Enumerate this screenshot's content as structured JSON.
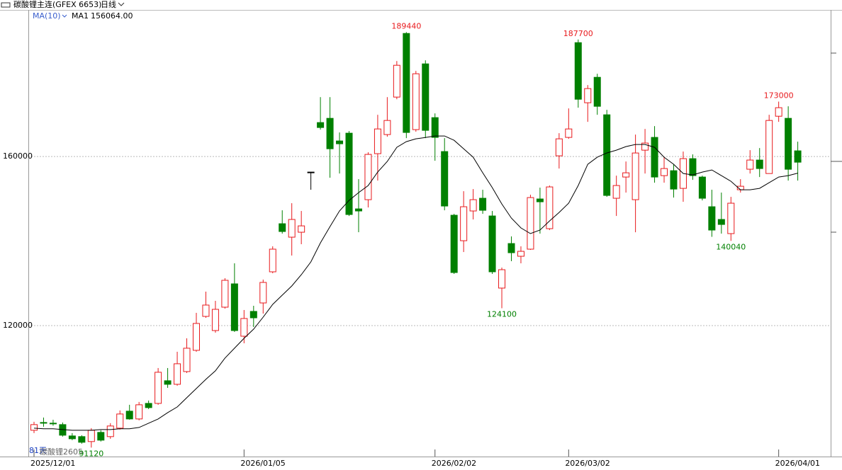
{
  "header": {
    "title": "碳酸锂主连(GFEX 6653)",
    "period": "日线"
  },
  "chart_data": {
    "type": "candlestick",
    "categories": [
      "2025/12/01",
      null,
      null,
      null,
      null,
      null,
      null,
      null,
      null,
      null,
      null,
      null,
      null,
      null,
      null,
      null,
      null,
      null,
      null,
      null,
      null,
      null,
      "2026/01/05",
      null,
      null,
      null,
      null,
      null,
      null,
      null,
      null,
      null,
      null,
      null,
      null,
      null,
      null,
      null,
      null,
      null,
      null,
      null,
      "2026/02/02",
      null,
      null,
      null,
      null,
      null,
      null,
      null,
      null,
      null,
      null,
      null,
      null,
      null,
      "2026/03/02",
      null,
      null,
      null,
      null,
      null,
      null,
      null,
      null,
      null,
      null,
      null,
      null,
      null,
      null,
      null,
      null,
      null,
      null,
      null,
      null,
      null,
      "2026/04/01",
      null,
      null
    ],
    "open": [
      95220,
      97060,
      96900,
      96560,
      93880,
      93720,
      92550,
      94720,
      93720,
      95720,
      99740,
      97900,
      101580,
      101580,
      106940,
      106100,
      109110,
      114140,
      122170,
      118820,
      124350,
      129870,
      117480,
      123350,
      125350,
      132720,
      144100,
      140920,
      142090,
      156320,
      168040,
      169040,
      163690,
      165530,
      147610,
      149790,
      160680,
      165200,
      174070,
      189130,
      166370,
      181930,
      169210,
      161180,
      146110,
      140080,
      147120,
      150130,
      145940,
      128870,
      139410,
      136400,
      138080,
      149960,
      142930,
      160170,
      164530,
      186950,
      172730,
      178750,
      169880,
      150130,
      155150,
      149790,
      161510,
      164530,
      155480,
      156650,
      152470,
      159500,
      155150,
      148120,
      145110,
      141760,
      152140,
      157000,
      159170,
      155980,
      169540,
      169040,
      161350
    ],
    "high": [
      97230,
      98230,
      97700,
      97060,
      94550,
      94050,
      95720,
      95220,
      96900,
      99910,
      101250,
      101920,
      102250,
      109950,
      109950,
      113800,
      116980,
      123010,
      128030,
      125850,
      131210,
      134730,
      123680,
      124680,
      130880,
      138750,
      147280,
      148960,
      147120,
      156320,
      174060,
      174060,
      165700,
      166030,
      154650,
      161010,
      169880,
      174060,
      182600,
      189440,
      180260,
      182770,
      170210,
      164360,
      146440,
      151800,
      152300,
      152140,
      147120,
      133720,
      141090,
      138750,
      150960,
      152640,
      153140,
      165530,
      171390,
      187700,
      176920,
      179590,
      171050,
      155480,
      158830,
      165200,
      166530,
      167200,
      159830,
      158160,
      161180,
      160510,
      155480,
      152140,
      151470,
      150460,
      154650,
      161510,
      162010,
      169880,
      173000,
      171890,
      163520
    ],
    "low": [
      94550,
      96060,
      96300,
      93720,
      92880,
      92040,
      91120,
      92550,
      93210,
      95390,
      97730,
      97570,
      100240,
      101250,
      105260,
      105770,
      108780,
      113800,
      121830,
      118320,
      124010,
      118490,
      115810,
      119660,
      122840,
      132380,
      141760,
      136570,
      139250,
      152140,
      166370,
      154980,
      155980,
      145940,
      142090,
      147950,
      154310,
      164690,
      173560,
      164360,
      165870,
      164360,
      159000,
      147280,
      132220,
      137400,
      145110,
      146440,
      132220,
      124100,
      135230,
      134730,
      137910,
      141760,
      142600,
      157160,
      164190,
      171560,
      168210,
      169880,
      150460,
      145940,
      151470,
      142090,
      155980,
      153810,
      153810,
      150290,
      149290,
      154480,
      149620,
      141000,
      141760,
      140040,
      151470,
      155980,
      155150,
      155980,
      168210,
      154310,
      154310
    ],
    "close": [
      96560,
      96890,
      96800,
      94050,
      93210,
      92380,
      95220,
      92880,
      96230,
      99070,
      97900,
      101250,
      100580,
      108950,
      106100,
      110960,
      114640,
      120500,
      124850,
      123840,
      130710,
      118820,
      121670,
      121830,
      130210,
      138080,
      142260,
      145110,
      143590,
      156320,
      166870,
      161840,
      163020,
      146280,
      147120,
      160510,
      166530,
      168540,
      181600,
      165700,
      179590,
      166200,
      164530,
      148290,
      132550,
      148120,
      149790,
      147280,
      132720,
      133220,
      137240,
      137570,
      150290,
      149290,
      152810,
      164190,
      166530,
      173560,
      176080,
      171890,
      150800,
      153140,
      156150,
      160840,
      163190,
      155150,
      157160,
      152300,
      159500,
      155480,
      150130,
      142600,
      143930,
      148960,
      152970,
      159170,
      157160,
      168540,
      171560,
      156990,
      158660
    ],
    "up_color": "#e8191c",
    "down_color": "#008000",
    "flat_color": "#000000",
    "ma": {
      "indicator": "MA(10)",
      "name": "MA1",
      "color": "#000000",
      "legend_value_label": "156064.00",
      "values": [
        95720,
        95560,
        95560,
        95390,
        95220,
        95220,
        95220,
        95390,
        95390,
        95560,
        95560,
        95890,
        96890,
        97900,
        99410,
        100750,
        102920,
        105100,
        107270,
        109280,
        112300,
        114640,
        116980,
        119160,
        122000,
        125020,
        127190,
        129370,
        132050,
        135060,
        139580,
        143430,
        147120,
        149630,
        151470,
        153140,
        156320,
        158830,
        162180,
        163520,
        164190,
        164520,
        164860,
        164860,
        163850,
        161850,
        159840,
        156150,
        152640,
        148790,
        145440,
        143100,
        141760,
        142600,
        144770,
        146780,
        148960,
        153140,
        158160,
        159840,
        160840,
        161510,
        162350,
        162850,
        162850,
        162180,
        159840,
        158160,
        155990,
        155650,
        156320,
        156820,
        155490,
        154150,
        152140,
        152140,
        152470,
        153810,
        155150,
        155490,
        156064
      ]
    },
    "ylim": [
      89000,
      194700
    ],
    "yticks": [
      120000,
      160000
    ],
    "grid": true,
    "period_count": "81天",
    "contract": "碳酸锂2605"
  }
}
